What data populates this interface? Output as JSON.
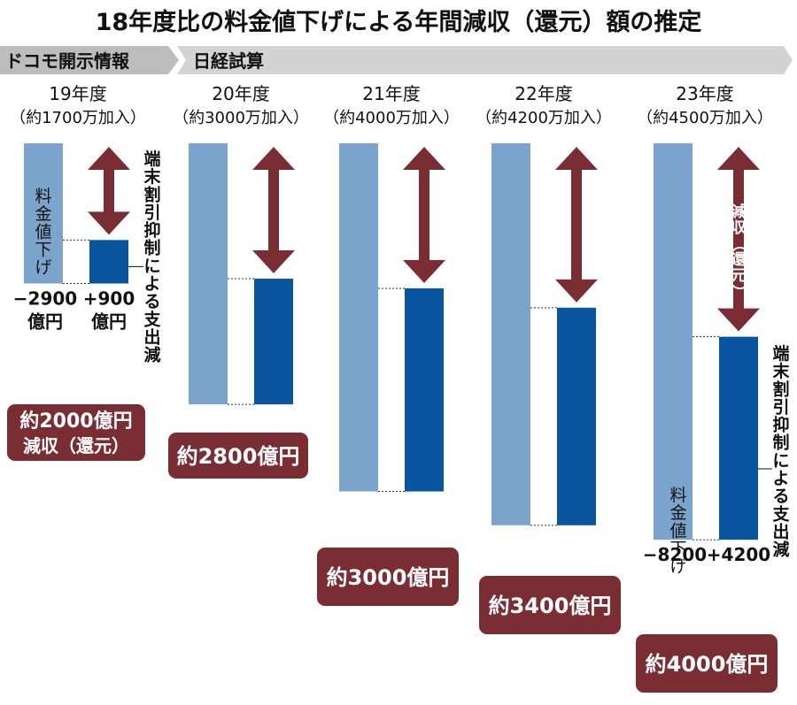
{
  "title": "18年度比の料金値下げによる年間減収（還元）額の推定",
  "header": {
    "source_left": "ドコモ開示情報",
    "source_right": "日経試算"
  },
  "labels": {
    "price_cut": "料金値下げ",
    "device_discount": "端末割引抑制による支出減",
    "reduction": "減収（還元）",
    "unit": "億円"
  },
  "colors": {
    "price_cut_bar": "#7ba4cc",
    "device_bar": "#0a55a0",
    "arrow": "#7a2e34",
    "badge": "#7a2e34",
    "banner_left": "#bdbdbd",
    "banner_right": "#d3d3d3"
  },
  "chart_data": {
    "type": "bar",
    "unit": "億円",
    "categories": [
      "19年度",
      "20年度",
      "21年度",
      "22年度",
      "23年度"
    ],
    "subscribers": [
      "（約1700万加入）",
      "（約3000万加入）",
      "（約4000万加入）",
      "（約4200万加入）",
      "（約4500万加入）"
    ],
    "series": [
      {
        "name": "料金値下げ",
        "values": [
          -2900,
          -5400,
          -7200,
          -7900,
          -8200
        ]
      },
      {
        "name": "端末割引抑制による支出減",
        "values": [
          900,
          2600,
          4200,
          4500,
          4200
        ]
      }
    ],
    "net_reduction": [
      2000,
      2800,
      3000,
      3400,
      4000
    ],
    "value_labels": {
      "0": {
        "price_cut": "−2900",
        "device": "+900",
        "unit": "億円"
      },
      "4": {
        "price_cut": "−8200",
        "device": "+4200"
      }
    },
    "badges": [
      {
        "line1": "約2000億円",
        "line2": "減収（還元）"
      },
      {
        "line1": "約2800億円"
      },
      {
        "line1": "約3000億円"
      },
      {
        "line1": "約3400億円"
      },
      {
        "line1": "約4000億円"
      }
    ]
  }
}
